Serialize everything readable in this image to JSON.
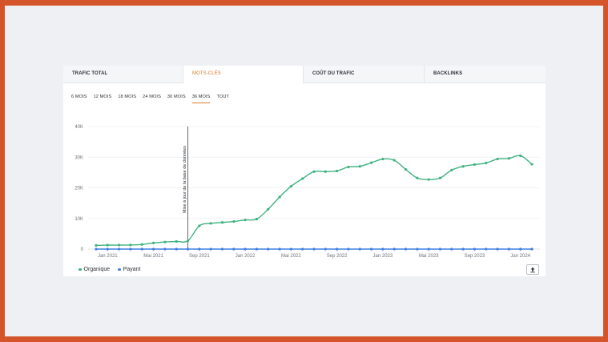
{
  "tabs": [
    "TRAFIC TOTAL",
    "MOTS-CLÉS",
    "COÛT DU TRAFIC",
    "BACKLINKS"
  ],
  "active_tab": 1,
  "periods": [
    "6 MOIS",
    "12 MOIS",
    "18 MOIS",
    "24 MOIS",
    "30 MOIS",
    "36 MOIS",
    "TOUT"
  ],
  "active_period": 5,
  "legend": [
    {
      "label": "Organique",
      "color": "#3fb27f"
    },
    {
      "label": "Payant",
      "color": "#3f7fe0"
    }
  ],
  "export_icon": "upload-icon",
  "chart_data": {
    "type": "line",
    "x_start": "2020-12",
    "x_tick_labels": [
      "Jan 2021",
      "Mai 2021",
      "Sep 2021",
      "Jan 2022",
      "Mai 2022",
      "Sep 2022",
      "Jan 2023",
      "Mai 2023",
      "Sep 2023",
      "Jan 2024"
    ],
    "y_ticks": [
      "0",
      "10K",
      "20K",
      "30K",
      "40K"
    ],
    "ylim": [
      0,
      40000
    ],
    "annotation": {
      "label": "Mise à jour de la base de données",
      "x": "2021-08"
    },
    "series": [
      {
        "name": "Organique",
        "color": "#3fb27f",
        "values": [
          1200,
          1300,
          1300,
          1350,
          1500,
          2000,
          2300,
          2500,
          2700,
          7600,
          8400,
          8700,
          9000,
          9500,
          9800,
          13000,
          17000,
          20500,
          23000,
          25300,
          25300,
          25500,
          26800,
          27000,
          28200,
          29400,
          29000,
          26000,
          23200,
          22700,
          23200,
          25800,
          27000,
          27600,
          28100,
          29400,
          29600,
          30500,
          27700
        ]
      },
      {
        "name": "Payant",
        "color": "#3f7fe0",
        "values": [
          0,
          0,
          0,
          0,
          0,
          0,
          0,
          0,
          0,
          0,
          0,
          0,
          0,
          0,
          0,
          0,
          0,
          0,
          0,
          0,
          0,
          0,
          0,
          0,
          0,
          0,
          0,
          0,
          0,
          0,
          0,
          0,
          0,
          0,
          0,
          0,
          0,
          0,
          0
        ]
      }
    ]
  }
}
